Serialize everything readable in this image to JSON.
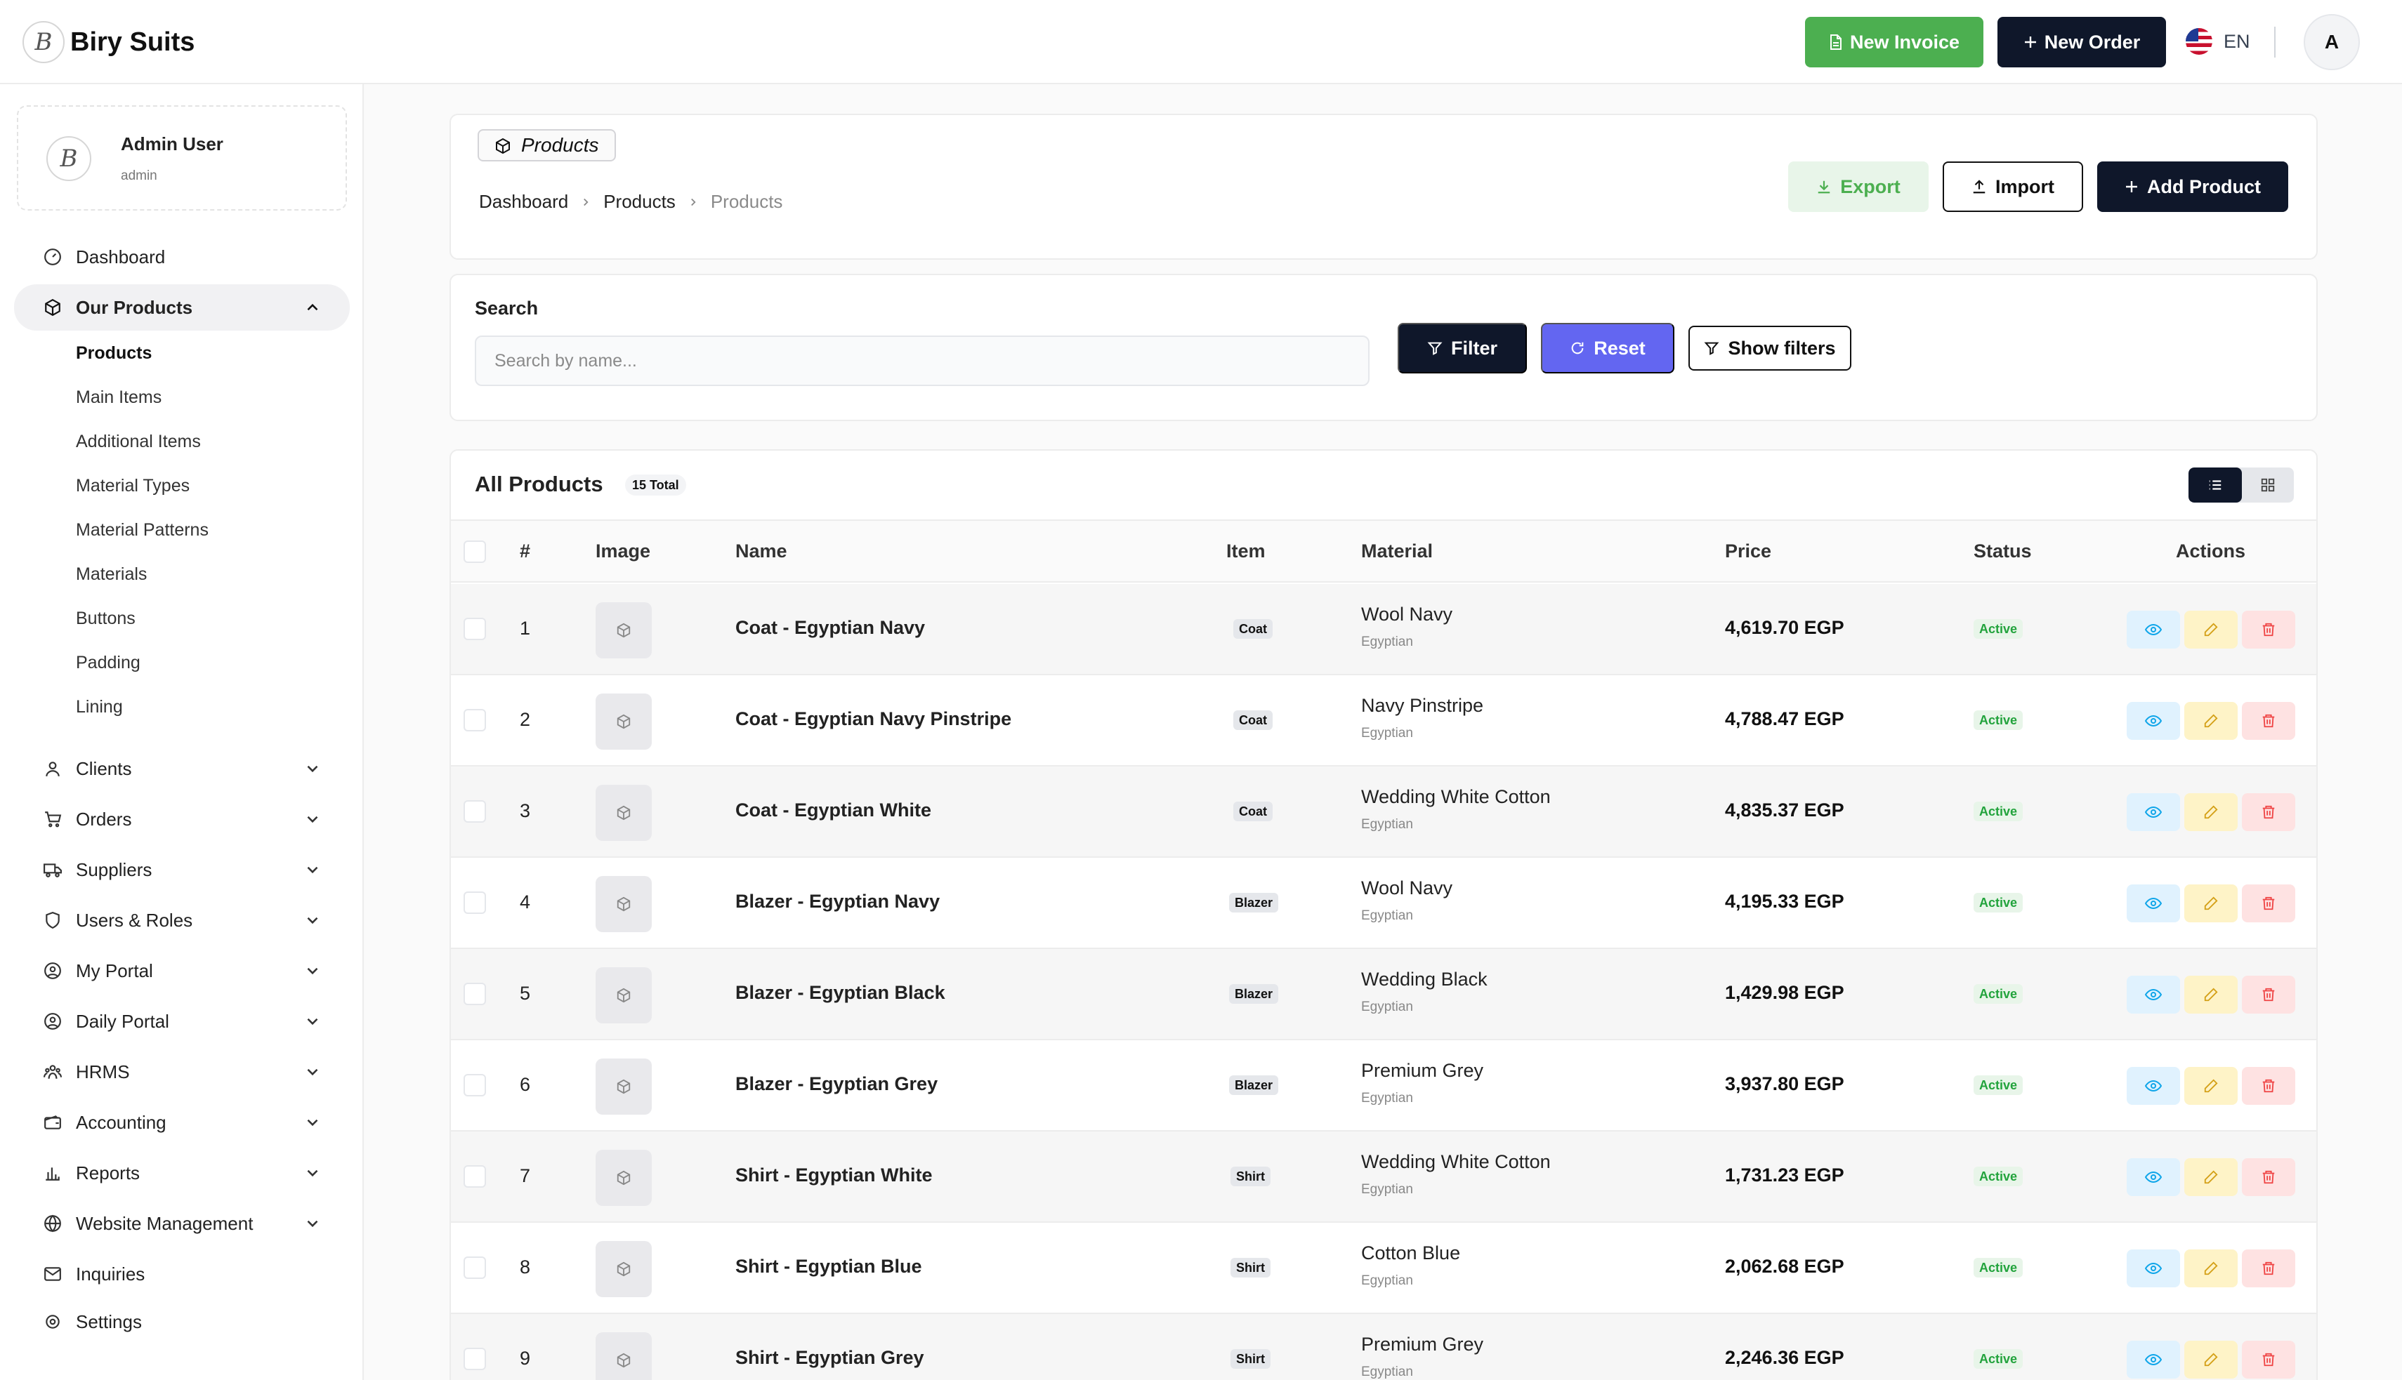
{
  "header": {
    "brand": "Biry Suits",
    "logo_letter": "B",
    "new_invoice": "New Invoice",
    "new_order": "New Order",
    "language": "EN",
    "avatar_letter": "A"
  },
  "user": {
    "name": "Admin User",
    "role": "admin"
  },
  "nav": {
    "dashboard": "Dashboard",
    "our_products": "Our Products",
    "sub_items": [
      "Products",
      "Main Items",
      "Additional Items",
      "Material Types",
      "Material Patterns",
      "Materials",
      "Buttons",
      "Padding",
      "Lining"
    ],
    "clients": "Clients",
    "orders": "Orders",
    "suppliers": "Suppliers",
    "users_roles": "Users & Roles",
    "my_portal": "My Portal",
    "daily_portal": "Daily Portal",
    "hrms": "HRMS",
    "accounting": "Accounting",
    "reports": "Reports",
    "website_management": "Website Management",
    "inquiries": "Inquiries",
    "settings": "Settings"
  },
  "page": {
    "title_pill": "Products",
    "breadcrumb": [
      "Dashboard",
      "Products",
      "Products"
    ],
    "export": "Export",
    "import": "Import",
    "add_product": "Add Product"
  },
  "search": {
    "label": "Search",
    "placeholder": "Search by name...",
    "filter": "Filter",
    "reset": "Reset",
    "show_filters": "Show filters"
  },
  "table": {
    "title": "All Products",
    "total": "15 Total",
    "columns": {
      "num": "#",
      "image": "Image",
      "name": "Name",
      "item": "Item",
      "material": "Material",
      "price": "Price",
      "status": "Status",
      "actions": "Actions"
    },
    "rows": [
      {
        "num": "1",
        "name": "Coat - Egyptian Navy",
        "item": "Coat",
        "material": "Wool Navy",
        "origin": "Egyptian",
        "price": "4,619.70 EGP",
        "status": "Active"
      },
      {
        "num": "2",
        "name": "Coat - Egyptian Navy Pinstripe",
        "item": "Coat",
        "material": "Navy Pinstripe",
        "origin": "Egyptian",
        "price": "4,788.47 EGP",
        "status": "Active"
      },
      {
        "num": "3",
        "name": "Coat - Egyptian White",
        "item": "Coat",
        "material": "Wedding White Cotton",
        "origin": "Egyptian",
        "price": "4,835.37 EGP",
        "status": "Active"
      },
      {
        "num": "4",
        "name": "Blazer - Egyptian Navy",
        "item": "Blazer",
        "material": "Wool Navy",
        "origin": "Egyptian",
        "price": "4,195.33 EGP",
        "status": "Active"
      },
      {
        "num": "5",
        "name": "Blazer - Egyptian Black",
        "item": "Blazer",
        "material": "Wedding Black",
        "origin": "Egyptian",
        "price": "1,429.98 EGP",
        "status": "Active"
      },
      {
        "num": "6",
        "name": "Blazer - Egyptian Grey",
        "item": "Blazer",
        "material": "Premium Grey",
        "origin": "Egyptian",
        "price": "3,937.80 EGP",
        "status": "Active"
      },
      {
        "num": "7",
        "name": "Shirt - Egyptian White",
        "item": "Shirt",
        "material": "Wedding White Cotton",
        "origin": "Egyptian",
        "price": "1,731.23 EGP",
        "status": "Active"
      },
      {
        "num": "8",
        "name": "Shirt - Egyptian Blue",
        "item": "Shirt",
        "material": "Cotton Blue",
        "origin": "Egyptian",
        "price": "2,062.68 EGP",
        "status": "Active"
      },
      {
        "num": "9",
        "name": "Shirt - Egyptian Grey",
        "item": "Shirt",
        "material": "Premium Grey",
        "origin": "Egyptian",
        "price": "2,246.36 EGP",
        "status": "Active"
      }
    ]
  },
  "colors": {
    "primary_dark": "#0f172a",
    "green": "#4caf50",
    "indigo": "#6366f1",
    "active_green": "#22a33c"
  }
}
